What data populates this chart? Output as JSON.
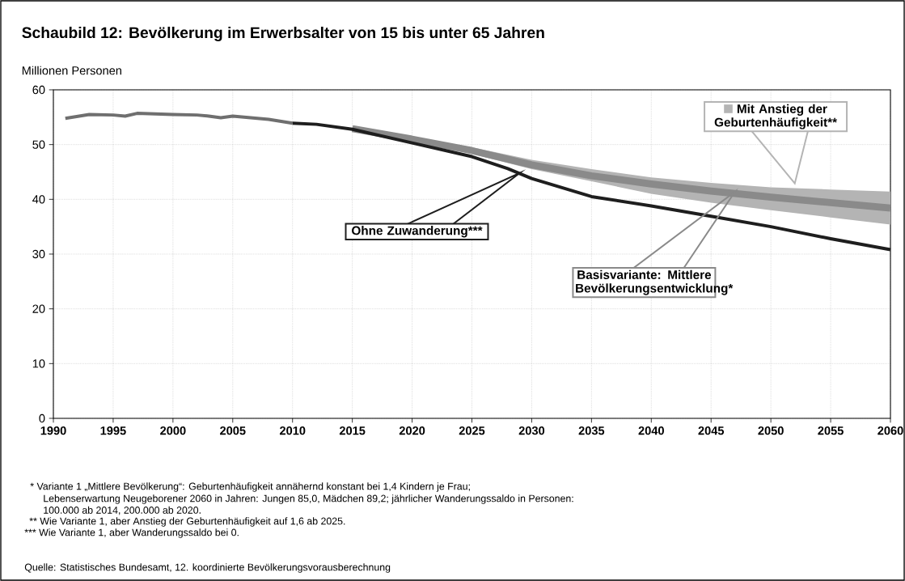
{
  "chart_data": {
    "type": "line",
    "title": "Schaubild 12: Bevölkerung im Erwerbsalter von 15 bis unter 65 Jahren",
    "ylabel": "Millionen Personen",
    "xlim": [
      1990,
      2060
    ],
    "xticks": [
      1990,
      1995,
      2000,
      2005,
      2010,
      2015,
      2020,
      2025,
      2030,
      2035,
      2040,
      2045,
      2050,
      2055,
      2060
    ],
    "ylim": [
      0,
      60
    ],
    "yticks": [
      0,
      10,
      20,
      30,
      40,
      50,
      60
    ],
    "grid": true,
    "marker": "none",
    "line_style": "solid",
    "series": [
      {
        "color": "#6f6f6f",
        "x": [
          1991,
          1993,
          1995,
          1996,
          1997,
          2000,
          2002,
          2003,
          2004,
          2005,
          2007,
          2008,
          2010
        ],
        "values": [
          54.8,
          55.5,
          55.4,
          55.2,
          55.7,
          55.5,
          55.4,
          55.2,
          54.9,
          55.2,
          54.8,
          54.6,
          53.9
        ]
      },
      {
        "name": "Mit Anstieg der Geburtenhäufigkeit**",
        "color": "#b4b4b4",
        "x": [
          2015,
          2020,
          2025,
          2030,
          2035,
          2040,
          2045,
          2050,
          2055,
          2060
        ],
        "values": [
          null,
          null,
          null,
          null,
          null,
          null,
          null,
          null,
          null,
          null
        ],
        "lower": [
          52.8,
          50.7,
          48.3,
          45.5,
          43.3,
          41.0,
          39.4,
          38.0,
          36.7,
          35.4
        ],
        "upper": [
          53.0,
          51.3,
          49.5,
          47.2,
          45.5,
          44.0,
          43.0,
          42.2,
          41.8,
          41.4
        ]
      },
      {
        "name": "Basisvariante: Mittlere Bevölkerungsentwicklung*",
        "color": "#8a8a8a",
        "x": [
          2015,
          2020,
          2025,
          2030,
          2035,
          2040,
          2045,
          2050,
          2055,
          2060
        ],
        "values": [
          52.9,
          51.0,
          48.9,
          46.3,
          44.3,
          42.8,
          41.5,
          40.4,
          39.4,
          38.4
        ]
      },
      {
        "name": "Ohne Zuwanderung***",
        "color": "#1e1e1e",
        "x": [
          2010,
          2012,
          2015,
          2020,
          2025,
          2028,
          2030,
          2035,
          2040,
          2045,
          2050,
          2055,
          2060
        ],
        "values": [
          53.9,
          53.7,
          52.8,
          50.3,
          47.8,
          45.6,
          43.8,
          40.5,
          38.8,
          36.9,
          35.0,
          32.8,
          30.8
        ]
      }
    ],
    "annotations": [
      "* Variante 1 „Mittlere Bevölkerung“: Geburtenhäufigkeit annähernd konstant bei 1,4 Kindern je Frau;",
      "Lebenserwartung Neugeborener 2060 in Jahren: Jungen 85,0, Mädchen 89,2; jährlicher Wanderungssaldo in Personen:",
      "100.000 ab 2014, 200.000 ab 2020.",
      "** Wie Variante 1, aber Anstieg der Geburtenhäufigkeit auf 1,6 ab 2025.",
      "*** Wie Variante 1, aber Wanderungssaldo bei 0.",
      "Quelle: Statistisches Bundesamt, 12. koordinierte Bevölkerungsvorausberechnung"
    ]
  }
}
